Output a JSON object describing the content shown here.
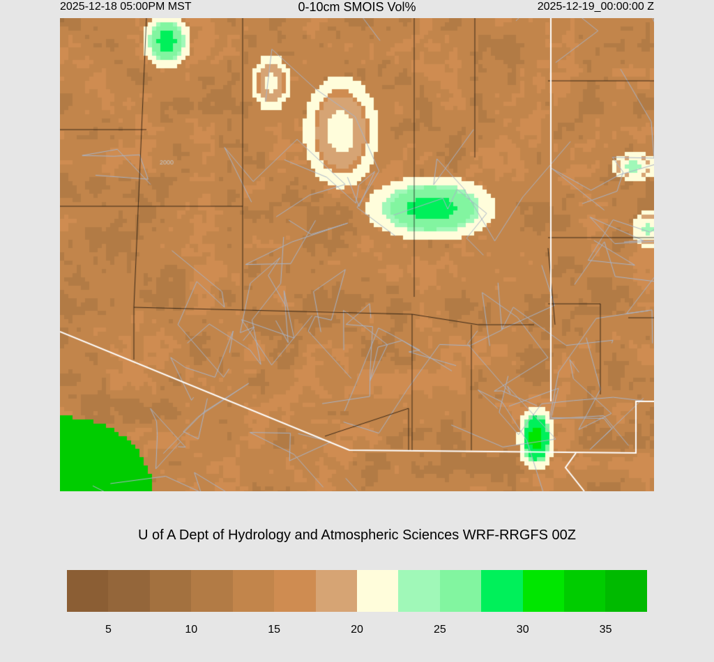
{
  "header": {
    "valid_local": "2025-12-18 05:00PM MST",
    "title": "0-10cm SMOIS Vol%",
    "valid_utc": "2025-12-19_00:00:00 Z"
  },
  "credit": "U of A Dept of Hydrology and Atmospheric Sciences WRF-RRGFS 00Z",
  "map": {
    "field": "0-10cm soil moisture",
    "contour_label": "2000",
    "state_border_color": "#ffffff",
    "county_line_color": "#000000",
    "road_color": "#a8b4c8"
  },
  "colorbar": {
    "colors": [
      "#8B5E34",
      "#94663A",
      "#A3713F",
      "#B27B45",
      "#C2854B",
      "#CF8C51",
      "#D6A474",
      "#FFFDDB",
      "#A0F8B8",
      "#82F5A0",
      "#00F05A",
      "#00E600",
      "#00CC00",
      "#00BA00"
    ],
    "boundaries": [
      5,
      7.5,
      10,
      12.5,
      15,
      17.5,
      20,
      22.5,
      25,
      27.5,
      30,
      32.5,
      35
    ],
    "tick_labels": [
      "5",
      "10",
      "15",
      "20",
      "25",
      "30",
      "35"
    ]
  }
}
